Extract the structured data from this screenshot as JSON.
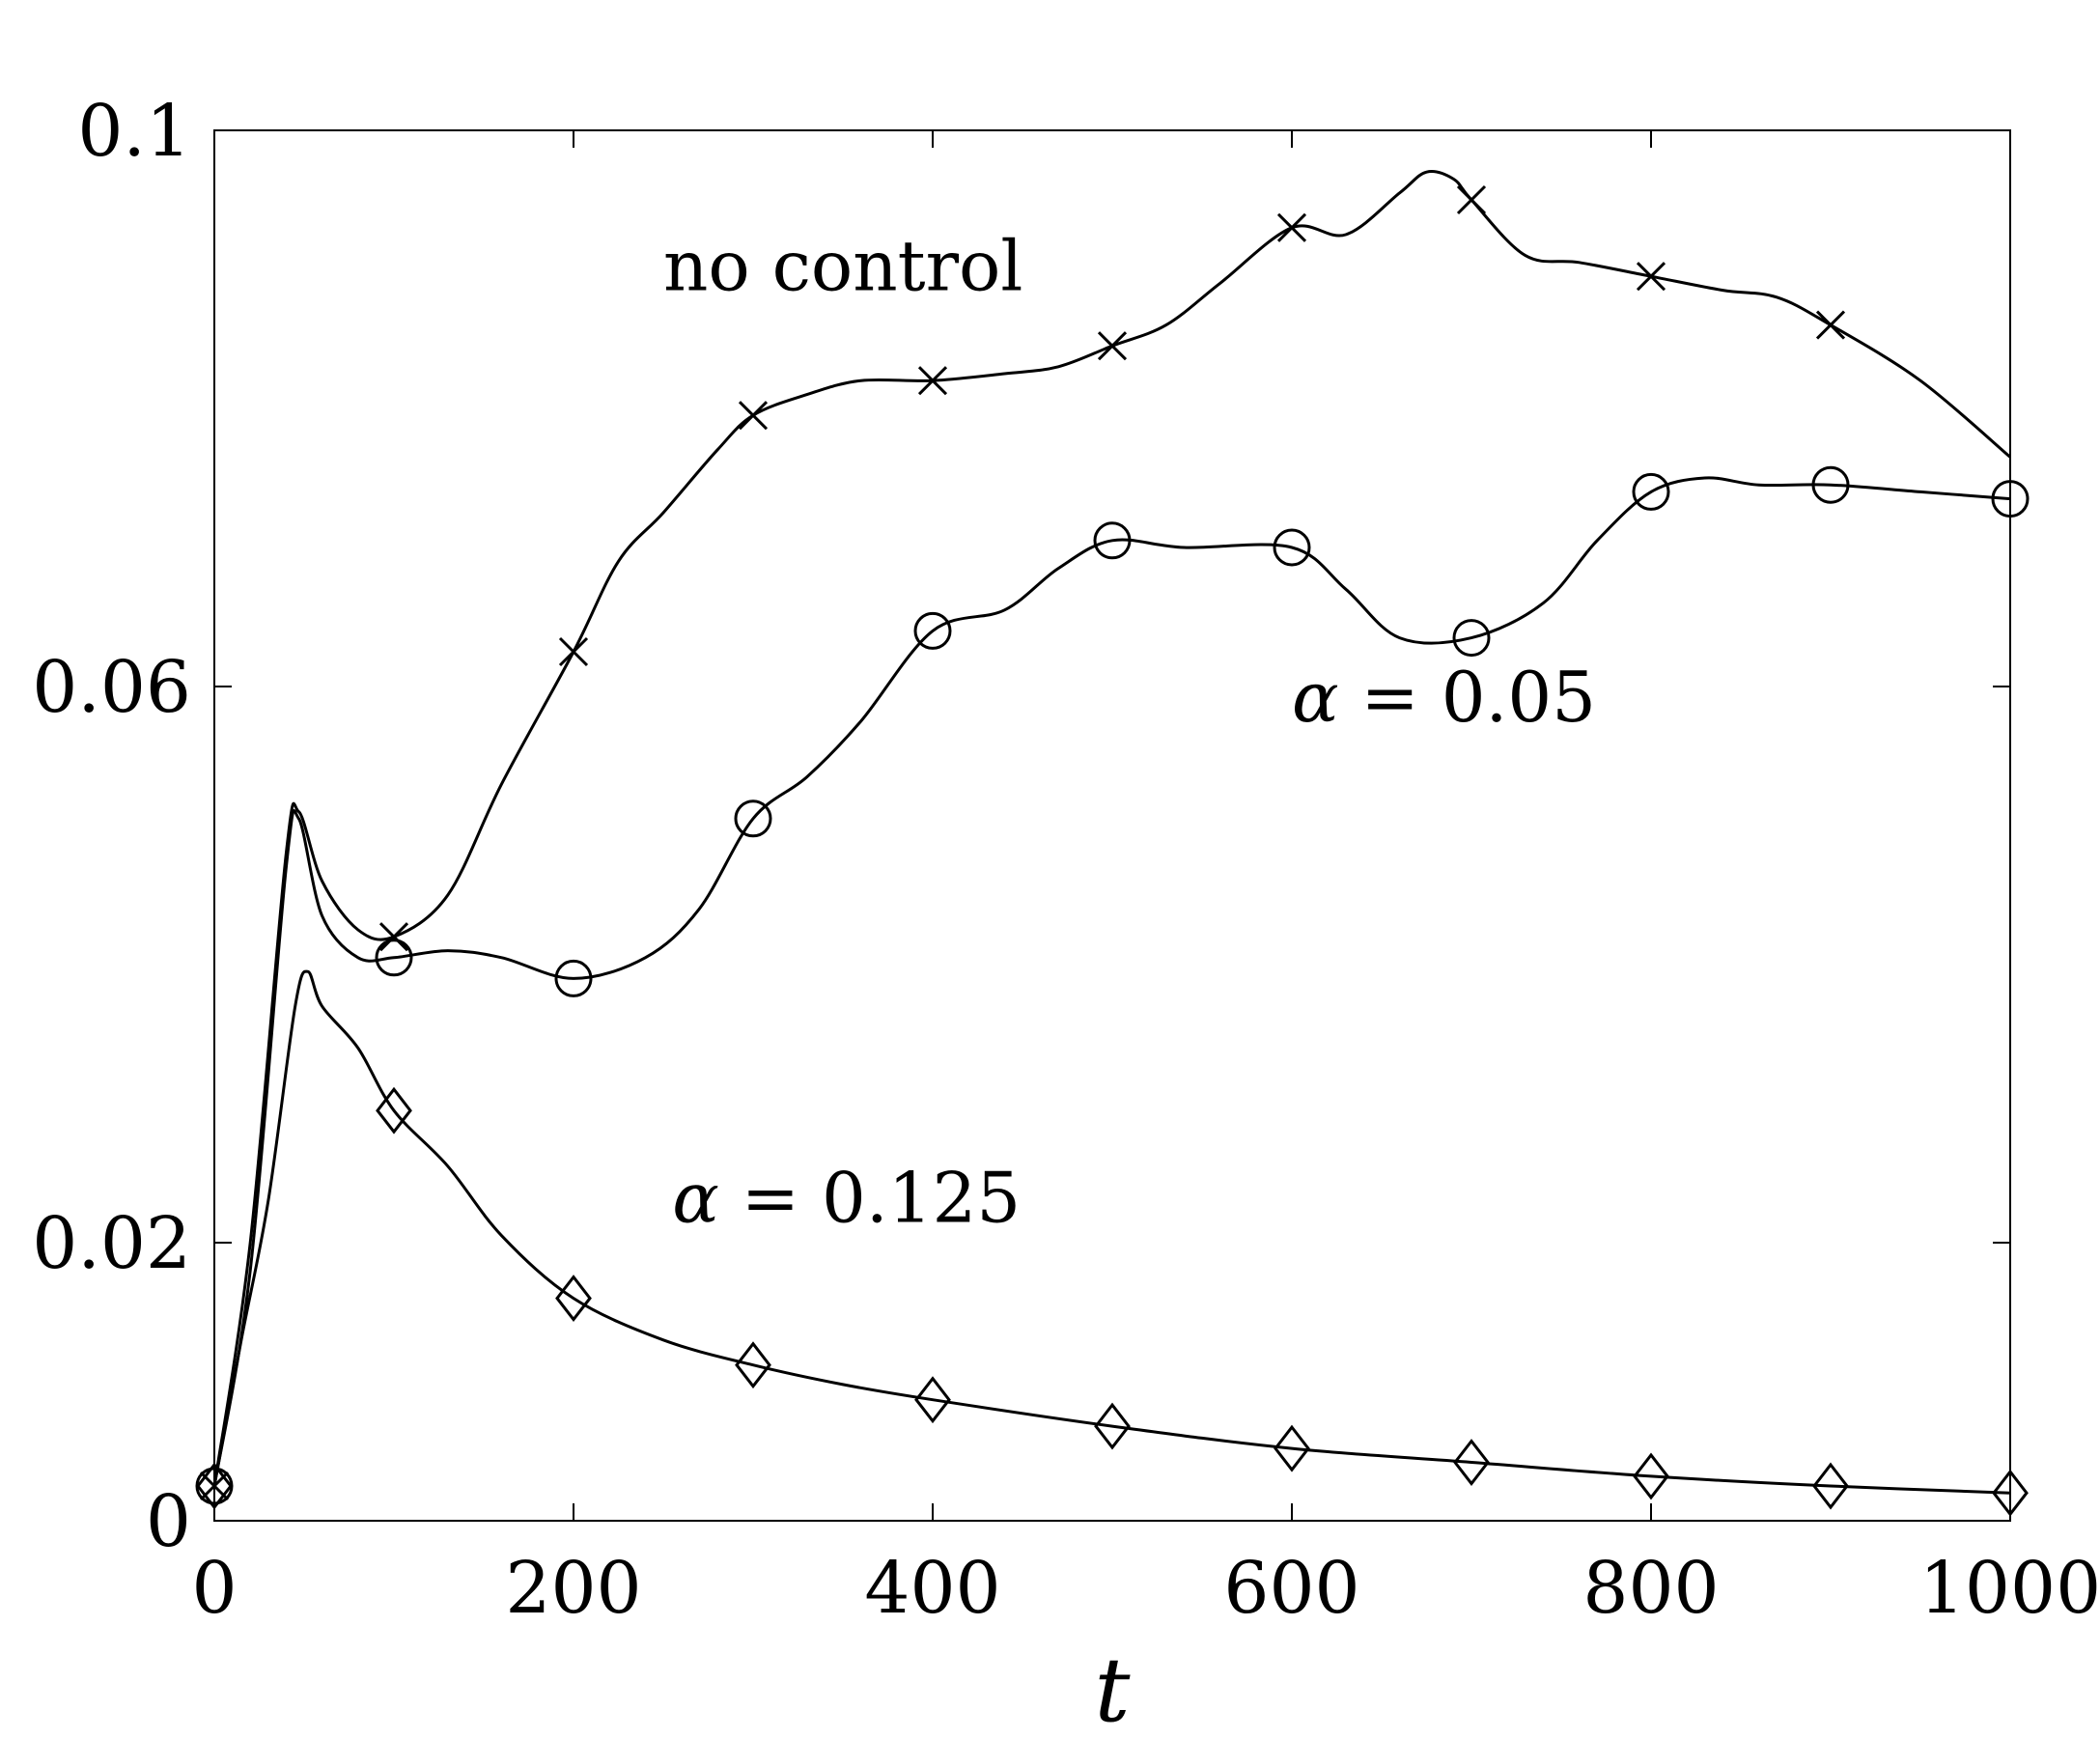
{
  "chart_data": {
    "type": "line",
    "title": "",
    "xlabel": "t",
    "ylabel": "",
    "xlim": [
      0,
      1000
    ],
    "ylim": [
      0,
      0.1
    ],
    "xticks": [
      0,
      200,
      400,
      600,
      800,
      1000
    ],
    "xtick_labels": [
      "0",
      "200",
      "400",
      "600",
      "800",
      "1000"
    ],
    "yticks": [
      0,
      0.02,
      0.06,
      0.1
    ],
    "ytick_labels": [
      "0",
      "0.02",
      "0.06",
      "0.1"
    ],
    "grid": false,
    "legend": "none",
    "series": [
      {
        "marker": "x",
        "x": [
          0,
          20,
          40,
          47,
          60,
          80,
          100,
          130,
          160,
          200,
          225,
          250,
          280,
          300,
          330,
          360,
          400,
          440,
          470,
          500,
          530,
          560,
          600,
          630,
          660,
          675,
          690,
          700,
          730,
          760,
          800,
          840,
          870,
          900,
          950,
          1000
        ],
        "y": [
          0.0025,
          0.02,
          0.048,
          0.051,
          0.046,
          0.0425,
          0.042,
          0.045,
          0.053,
          0.0625,
          0.069,
          0.0725,
          0.077,
          0.0795,
          0.081,
          0.082,
          0.082,
          0.0825,
          0.083,
          0.0845,
          0.086,
          0.089,
          0.093,
          0.0925,
          0.0955,
          0.097,
          0.0965,
          0.095,
          0.091,
          0.0905,
          0.0895,
          0.0885,
          0.088,
          0.086,
          0.082,
          0.0765
        ],
        "marker_x": [
          0,
          100,
          200,
          300,
          400,
          500,
          600,
          700,
          800,
          900
        ],
        "marker_y": [
          0.0025,
          0.042,
          0.0625,
          0.0795,
          0.082,
          0.0845,
          0.093,
          0.095,
          0.0895,
          0.086
        ]
      },
      {
        "marker": "o",
        "x": [
          0,
          20,
          40,
          47,
          60,
          80,
          100,
          130,
          160,
          200,
          240,
          270,
          300,
          330,
          360,
          400,
          440,
          470,
          500,
          540,
          600,
          630,
          660,
          700,
          740,
          770,
          800,
          830,
          860,
          900,
          950,
          1000
        ],
        "y": [
          0.0025,
          0.018,
          0.047,
          0.0505,
          0.0435,
          0.0405,
          0.0405,
          0.041,
          0.0405,
          0.039,
          0.0405,
          0.044,
          0.0505,
          0.0535,
          0.0575,
          0.064,
          0.0655,
          0.0685,
          0.0705,
          0.07,
          0.07,
          0.067,
          0.0635,
          0.0635,
          0.066,
          0.0705,
          0.074,
          0.075,
          0.0745,
          0.0745,
          0.074,
          0.0735
        ],
        "marker_x": [
          0,
          100,
          200,
          300,
          400,
          500,
          600,
          700,
          800,
          900,
          1000
        ],
        "marker_y": [
          0.0025,
          0.0405,
          0.039,
          0.0505,
          0.064,
          0.0705,
          0.07,
          0.0635,
          0.074,
          0.0745,
          0.0735
        ]
      },
      {
        "marker": "diamond",
        "x": [
          0,
          15,
          30,
          45,
          52,
          60,
          80,
          100,
          130,
          160,
          200,
          250,
          300,
          350,
          400,
          500,
          600,
          700,
          800,
          900,
          1000
        ],
        "y": [
          0.0025,
          0.013,
          0.023,
          0.037,
          0.0395,
          0.037,
          0.034,
          0.0295,
          0.0255,
          0.0205,
          0.016,
          0.013,
          0.0112,
          0.0098,
          0.0087,
          0.0068,
          0.0052,
          0.0042,
          0.0032,
          0.0025,
          0.002
        ],
        "marker_x": [
          0,
          100,
          200,
          300,
          400,
          500,
          600,
          700,
          800,
          900,
          1000
        ],
        "marker_y": [
          0.0025,
          0.0295,
          0.016,
          0.0112,
          0.0087,
          0.0068,
          0.0052,
          0.0042,
          0.0032,
          0.0025,
          0.002
        ]
      }
    ],
    "annotations": [
      {
        "text": "no control",
        "x": 250,
        "y": 0.0885
      },
      {
        "text_symbol": "α",
        "text_rest": " = 0.05",
        "x": 600,
        "y": 0.0575
      },
      {
        "text_symbol": "α",
        "text_rest": " = 0.125",
        "x": 255,
        "y": 0.0215
      }
    ]
  }
}
